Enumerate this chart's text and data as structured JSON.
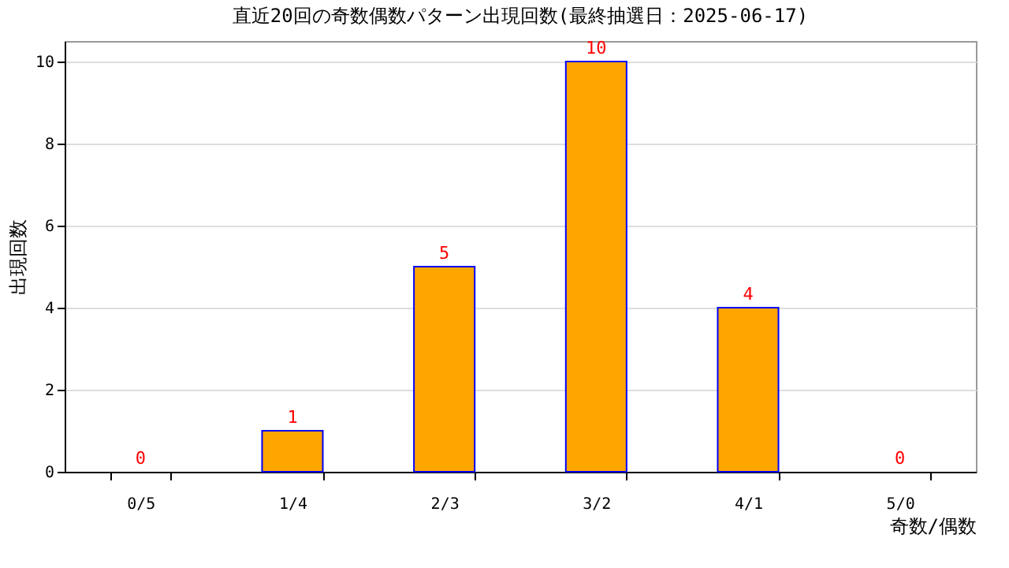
{
  "chart_data": {
    "type": "bar",
    "title": "直近20回の奇数偶数パターン出現回数(最終抽選日：2025-06-17)",
    "xlabel": "奇数/偶数",
    "ylabel": "出現回数",
    "categories": [
      "0/5",
      "1/4",
      "2/3",
      "3/2",
      "4/1",
      "5/0"
    ],
    "values": [
      0,
      1,
      5,
      10,
      4,
      0
    ],
    "color": "#ffa500",
    "ylim": [
      0,
      10.5
    ],
    "yticks": [
      0,
      2,
      4,
      6,
      8,
      10
    ],
    "grid": "y",
    "data_labels": true
  }
}
